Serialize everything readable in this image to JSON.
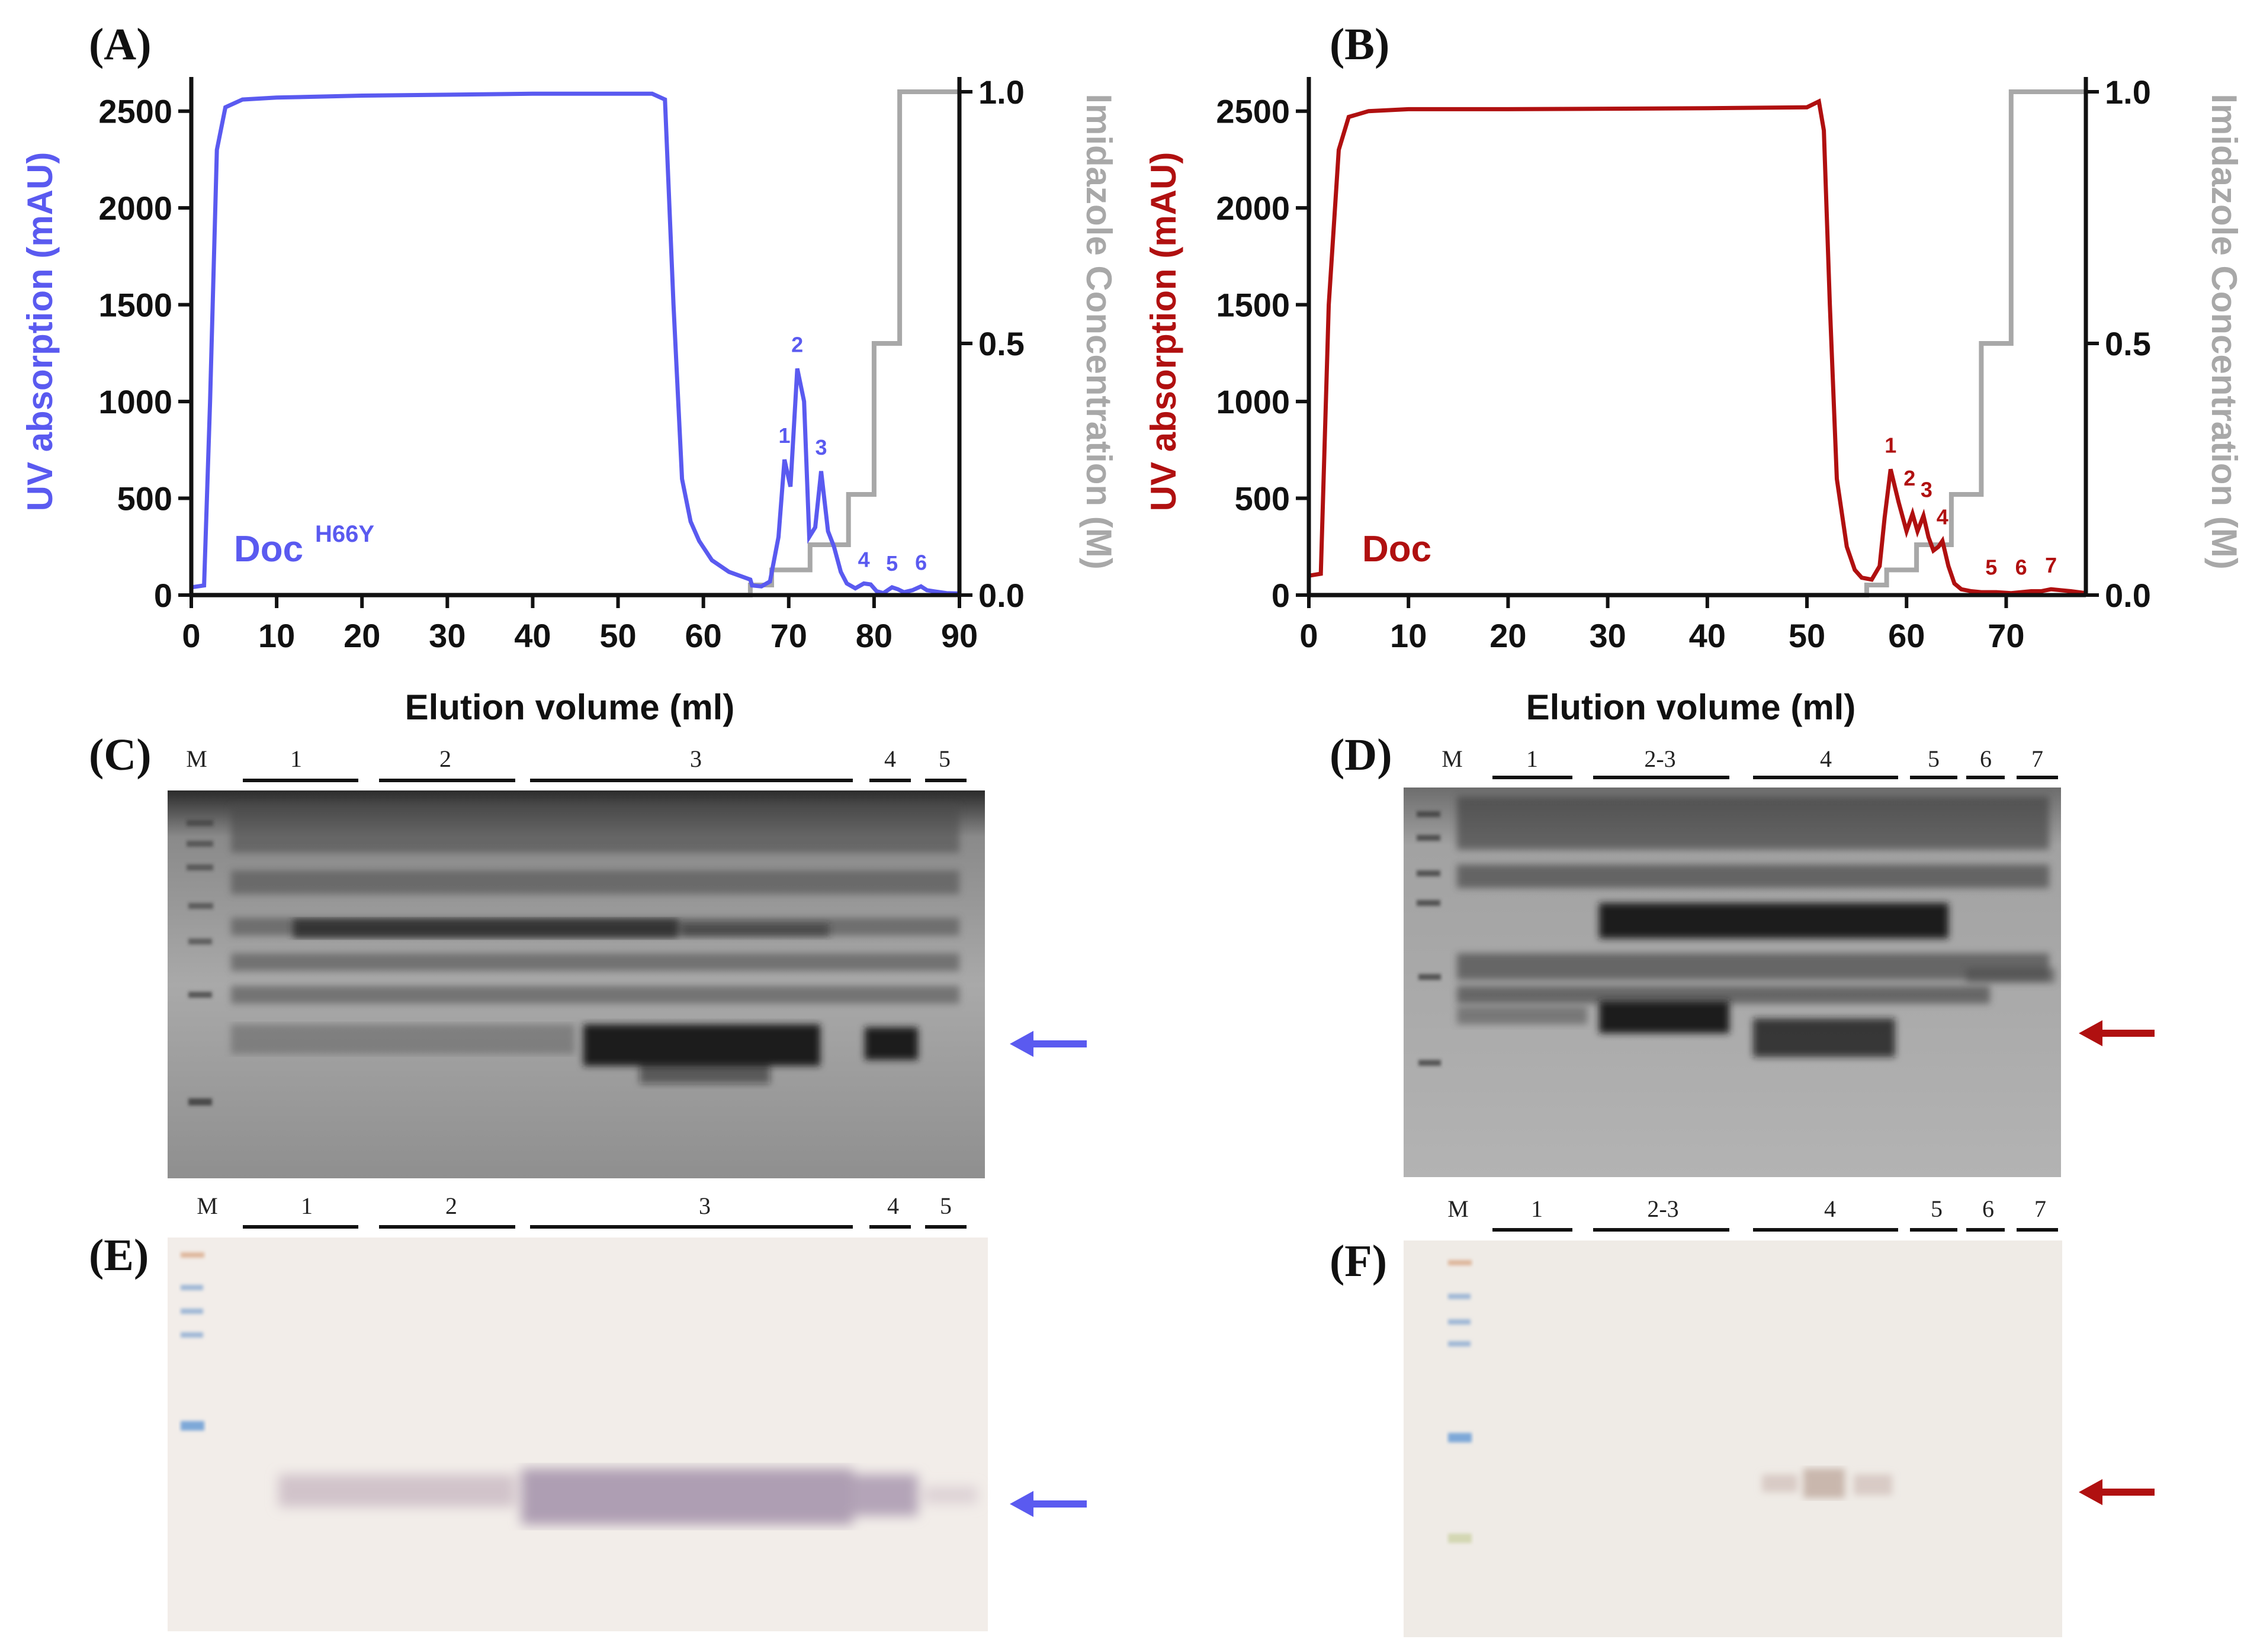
{
  "colors": {
    "docH66Y": "#5a5af0",
    "doc": "#b01010",
    "imidazole": "#a8a8a8",
    "axis": "#111111"
  },
  "panels": {
    "A": "(A)",
    "B": "(B)",
    "C": "(C)",
    "D": "(D)",
    "E": "(E)",
    "F": "(F)"
  },
  "chart_data": [
    {
      "id": "A",
      "type": "line",
      "xlabel": "Elution volume (ml)",
      "ylabel": "UV absorption (mAU)",
      "y2label": "Imidazole Concentration (M)",
      "xlim": [
        0,
        90
      ],
      "ylim": [
        0,
        2600
      ],
      "y2lim": [
        0,
        1.0
      ],
      "xticks": [
        0,
        10,
        20,
        30,
        40,
        50,
        60,
        70,
        80,
        90
      ],
      "yticks": [
        0,
        500,
        1000,
        1500,
        2000,
        2500
      ],
      "y2ticks": [
        "0.0",
        "0.5",
        "1.0"
      ],
      "sample_label": "Doc",
      "sample_sup": "H66Y",
      "series": [
        {
          "name": "UV",
          "x": [
            0,
            1.5,
            2.2,
            3,
            4,
            6,
            10,
            20,
            40,
            54,
            55.5,
            56.5,
            57.5,
            58.5,
            59.5,
            61,
            63,
            65.5,
            65.7,
            66.8,
            67.8,
            68.8,
            69.5,
            70.2,
            71,
            71.8,
            72.4,
            73.1,
            73.8,
            74.6,
            75.3,
            76.1,
            76.8,
            77.8,
            78.8,
            79.6,
            80.3,
            81.1,
            82.1,
            82.8,
            83.5,
            84.5,
            85.5,
            86.2,
            87.2,
            88.5,
            90
          ],
          "y": [
            40,
            50,
            1000,
            2300,
            2520,
            2560,
            2570,
            2580,
            2590,
            2590,
            2560,
            1500,
            600,
            380,
            280,
            180,
            120,
            80,
            50,
            45,
            70,
            300,
            700,
            560,
            1170,
            1000,
            300,
            350,
            640,
            330,
            250,
            120,
            60,
            35,
            60,
            55,
            20,
            10,
            40,
            30,
            15,
            25,
            45,
            25,
            18,
            10,
            8
          ]
        },
        {
          "name": "Imidazole",
          "axis": "y2",
          "x": [
            0,
            65.5,
            65.5,
            68,
            68,
            72.5,
            72.5,
            77,
            77,
            80,
            80,
            83,
            83,
            90
          ],
          "y": [
            0,
            0,
            0.02,
            0.02,
            0.05,
            0.05,
            0.1,
            0.1,
            0.2,
            0.2,
            0.5,
            0.5,
            1.0,
            1.0
          ]
        }
      ],
      "peaks": [
        {
          "label": "1",
          "x": 69.5,
          "y": 700
        },
        {
          "label": "2",
          "x": 71,
          "y": 1170
        },
        {
          "label": "3",
          "x": 73.8,
          "y": 640
        },
        {
          "label": "4",
          "x": 78.8,
          "y": 60
        },
        {
          "label": "5",
          "x": 82.1,
          "y": 40
        },
        {
          "label": "6",
          "x": 85.5,
          "y": 45
        }
      ]
    },
    {
      "id": "B",
      "type": "line",
      "xlabel": "Elution volume (ml)",
      "ylabel": "UV absorption (mAU)",
      "y2label": "Imidazole Concentration (M)",
      "xlim": [
        0,
        78
      ],
      "ylim": [
        0,
        2600
      ],
      "y2lim": [
        0,
        1.0
      ],
      "xticks": [
        0,
        10,
        20,
        30,
        40,
        50,
        60,
        70
      ],
      "yticks": [
        0,
        500,
        1000,
        1500,
        2000,
        2500
      ],
      "y2ticks": [
        "0.0",
        "0.5",
        "1.0"
      ],
      "sample_label": "Doc",
      "sample_sup": "",
      "series": [
        {
          "name": "UV",
          "x": [
            0,
            1.2,
            2,
            3,
            4,
            6,
            10,
            20,
            40,
            50,
            51.2,
            51.7,
            52.3,
            53,
            54,
            54.8,
            55.5,
            56.5,
            57.3,
            57.8,
            58.4,
            59.2,
            60,
            60.6,
            61.1,
            61.7,
            62.2,
            62.7,
            63.2,
            63.6,
            64.2,
            64.8,
            65.5,
            66.5,
            67.5,
            69,
            70.5,
            71.5,
            72.5,
            73.5,
            74.5,
            75.5,
            76.5,
            78
          ],
          "y": [
            100,
            110,
            1500,
            2300,
            2470,
            2500,
            2510,
            2510,
            2515,
            2520,
            2550,
            2400,
            1500,
            600,
            250,
            130,
            90,
            80,
            150,
            400,
            650,
            480,
            330,
            420,
            330,
            410,
            300,
            230,
            250,
            280,
            150,
            60,
            30,
            20,
            15,
            15,
            10,
            15,
            20,
            20,
            30,
            25,
            20,
            10
          ]
        },
        {
          "name": "Imidazole",
          "axis": "y2",
          "x": [
            0,
            56,
            56,
            58,
            58,
            61,
            61,
            64.5,
            64.5,
            67.5,
            67.5,
            70.5,
            70.5,
            73.5,
            73.5,
            78
          ],
          "y": [
            0,
            0,
            0.02,
            0.02,
            0.05,
            0.05,
            0.1,
            0.1,
            0.2,
            0.2,
            0.5,
            0.5,
            1.0,
            1.0,
            1.0,
            1.0
          ]
        }
      ],
      "peaks": [
        {
          "label": "1",
          "x": 58.4,
          "y": 650
        },
        {
          "label": "2",
          "x": 60.3,
          "y": 480
        },
        {
          "label": "3",
          "x": 62.0,
          "y": 420
        },
        {
          "label": "4",
          "x": 63.6,
          "y": 280
        },
        {
          "label": "5",
          "x": 68.5,
          "y": 20
        },
        {
          "label": "6",
          "x": 71.5,
          "y": 20
        },
        {
          "label": "7",
          "x": 74.5,
          "y": 30
        }
      ]
    }
  ],
  "gels": {
    "C": {
      "marker": "M",
      "fractions": [
        "1",
        "2",
        "3",
        "4",
        "5"
      ],
      "arrow_color": "#5a5af0"
    },
    "D": {
      "marker": "M",
      "fractions": [
        "1",
        "2-3",
        "4",
        "5",
        "6",
        "7"
      ],
      "arrow_color": "#b01010"
    },
    "E": {
      "marker": "M",
      "fractions": [
        "1",
        "2",
        "3",
        "4",
        "5"
      ],
      "arrow_color": "#5a5af0"
    },
    "F": {
      "marker": "M",
      "fractions": [
        "1",
        "2-3",
        "4",
        "5",
        "6",
        "7"
      ],
      "arrow_color": "#b01010"
    }
  }
}
